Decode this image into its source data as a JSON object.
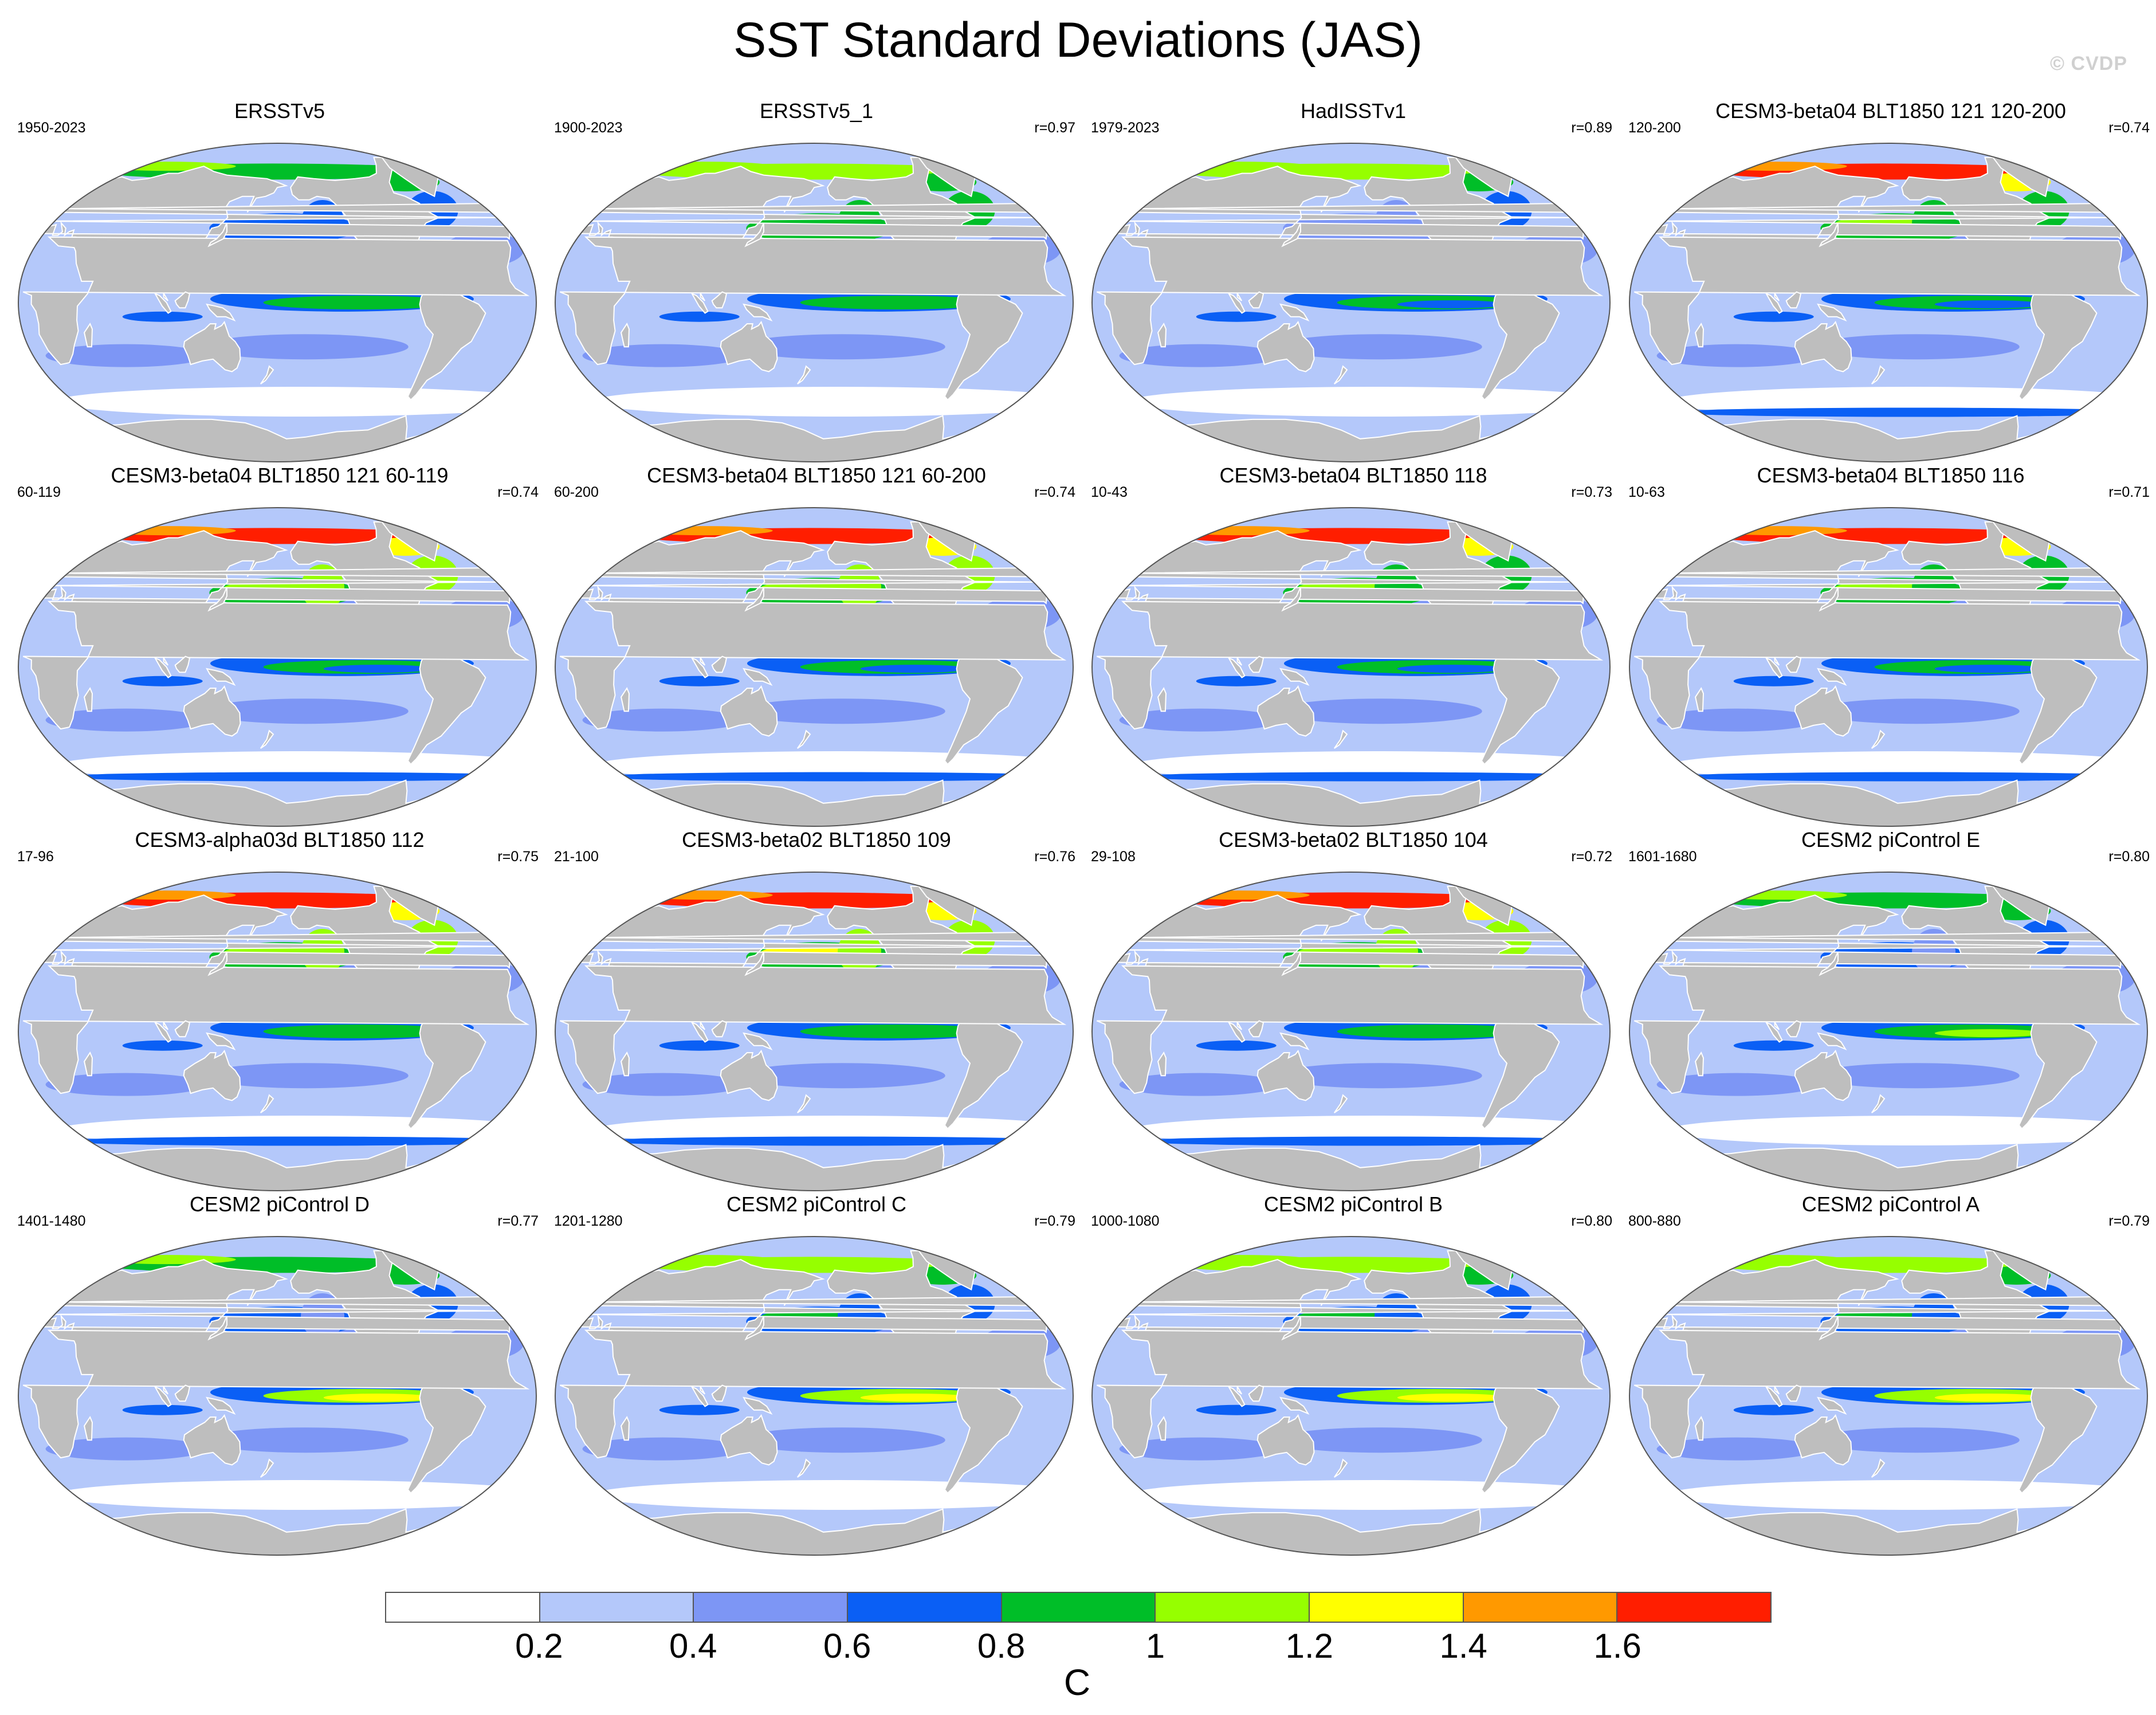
{
  "figure": {
    "title": "SST Standard Deviations (JAS)",
    "watermark": "© CVDP"
  },
  "palette": {
    "land": "#bebebe",
    "coast": "#ffffff",
    "levels": [
      "#ffffff",
      "#b4c8fa",
      "#7d96f5",
      "#0a5ff5",
      "#00be28",
      "#96ff00",
      "#ffff00",
      "#ff9900",
      "#ff1e00"
    ]
  },
  "panels": [
    {
      "title": "ERSSTv5",
      "years": "1950-2023",
      "corr": "",
      "pacific": 0.85,
      "north": 0.75,
      "arctic": 0.95,
      "south": 0.15
    },
    {
      "title": "ERSSTv5_1",
      "years": "1900-2023",
      "corr": "r=0.97",
      "pacific": 0.85,
      "north": 0.9,
      "arctic": 1.0,
      "south": 0.15
    },
    {
      "title": "HadISSTv1",
      "years": "1979-2023",
      "corr": "r=0.89",
      "pacific": 0.75,
      "north": 0.6,
      "arctic": 1.2,
      "south": 0.15
    },
    {
      "title": "CESM3-beta04 BLT1850 121 120-200",
      "years": "120-200",
      "corr": "r=0.74",
      "pacific": 0.7,
      "north": 1.05,
      "arctic": 1.65,
      "south": 0.5
    },
    {
      "title": "CESM3-beta04 BLT1850 121 60-119",
      "years": "60-119",
      "corr": "r=0.74",
      "pacific": 0.7,
      "north": 1.1,
      "arctic": 1.65,
      "south": 0.5
    },
    {
      "title": "CESM3-beta04 BLT1850 121 60-200",
      "years": "60-200",
      "corr": "r=0.74",
      "pacific": 0.7,
      "north": 1.1,
      "arctic": 1.65,
      "south": 0.5
    },
    {
      "title": "CESM3-beta04 BLT1850 118",
      "years": "10-43",
      "corr": "r=0.73",
      "pacific": 0.7,
      "north": 1.05,
      "arctic": 1.65,
      "south": 0.5
    },
    {
      "title": "CESM3-beta04 BLT1850 116",
      "years": "10-63",
      "corr": "r=0.71",
      "pacific": 0.7,
      "north": 1.05,
      "arctic": 1.65,
      "south": 0.5
    },
    {
      "title": "CESM3-alpha03d BLT1850 112",
      "years": "17-96",
      "corr": "r=0.75",
      "pacific": 0.85,
      "north": 1.1,
      "arctic": 1.65,
      "south": 0.5
    },
    {
      "title": "CESM3-beta02 BLT1850 109",
      "years": "21-100",
      "corr": "r=0.76",
      "pacific": 0.8,
      "north": 1.3,
      "arctic": 1.65,
      "south": 0.5
    },
    {
      "title": "CESM3-beta02 BLT1850 104",
      "years": "29-108",
      "corr": "r=0.72",
      "pacific": 0.8,
      "north": 1.1,
      "arctic": 1.65,
      "south": 0.5
    },
    {
      "title": "CESM2 piControl E",
      "years": "1601-1680",
      "corr": "r=0.80",
      "pacific": 1.1,
      "north": 0.7,
      "arctic": 0.9,
      "south": 0.3
    },
    {
      "title": "CESM2 piControl D",
      "years": "1401-1480",
      "corr": "r=0.77",
      "pacific": 1.3,
      "north": 0.7,
      "arctic": 0.9,
      "south": 0.3
    },
    {
      "title": "CESM2 piControl C",
      "years": "1201-1280",
      "corr": "r=0.79",
      "pacific": 1.3,
      "north": 0.85,
      "arctic": 1.0,
      "south": 0.3
    },
    {
      "title": "CESM2 piControl B",
      "years": "1000-1080",
      "corr": "r=0.80",
      "pacific": 1.3,
      "north": 0.85,
      "arctic": 1.0,
      "south": 0.3
    },
    {
      "title": "CESM2 piControl A",
      "years": "800-880",
      "corr": "r=0.79",
      "pacific": 1.3,
      "north": 0.85,
      "arctic": 1.0,
      "south": 0.3
    }
  ],
  "colorbar": {
    "ticks": [
      "0.2",
      "0.4",
      "0.6",
      "0.8",
      "1",
      "1.2",
      "1.4",
      "1.6"
    ],
    "unit": "C"
  }
}
